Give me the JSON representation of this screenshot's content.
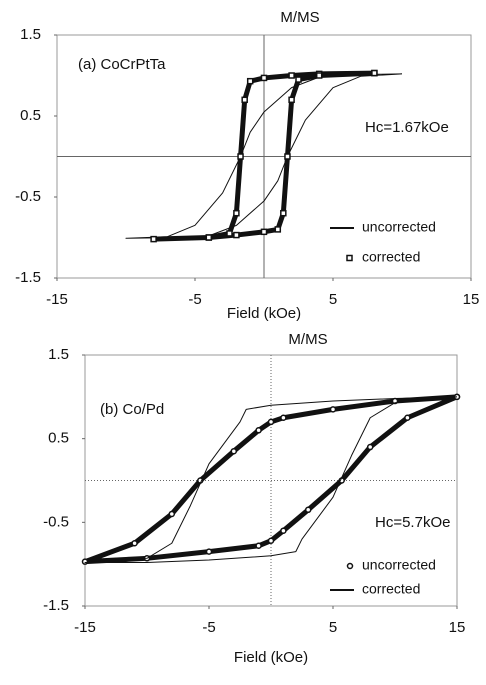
{
  "chart_data": [
    {
      "type": "line",
      "title": "M/MS",
      "x_label": "Field (kOe)",
      "annotations": [
        "(a) CoCrPtTa",
        "Hc=1.67kOe"
      ],
      "xlim": [
        -15,
        15
      ],
      "xticks": [
        -15,
        -5,
        5,
        15
      ],
      "ylim": [
        -1.5,
        1.5
      ],
      "yticks": [
        -1.5,
        -0.5,
        0.5,
        1.5
      ],
      "zero_lines": "solid",
      "series": [
        {
          "name": "uncorrected",
          "color": "#111111",
          "marker": "none",
          "line_width": 1,
          "x": [
            10,
            6,
            4,
            2,
            0,
            -1,
            -1.7,
            -3,
            -5,
            -7,
            -10,
            -6,
            -4,
            -2,
            0,
            1,
            1.7,
            3,
            5,
            7,
            10
          ],
          "values": [
            1.02,
            1.01,
            0.98,
            0.85,
            0.55,
            0.3,
            0,
            -0.45,
            -0.85,
            -0.99,
            -1.01,
            -1,
            -0.98,
            -0.85,
            -0.55,
            -0.3,
            0,
            0.45,
            0.85,
            0.99,
            1.02
          ]
        },
        {
          "name": "corrected",
          "color": "#111111",
          "marker": "square",
          "line_width": 5,
          "x": [
            8,
            4,
            2,
            0,
            -1,
            -1.4,
            -1.7,
            -2,
            -2.5,
            -4,
            -8,
            -4,
            -2,
            0,
            1,
            1.4,
            1.7,
            2,
            2.5,
            4,
            8
          ],
          "values": [
            1.03,
            1.02,
            1.0,
            0.97,
            0.93,
            0.7,
            0,
            -0.7,
            -0.95,
            -1.0,
            -1.02,
            -1.0,
            -0.97,
            -0.93,
            -0.9,
            -0.7,
            0,
            0.7,
            0.95,
            1.0,
            1.03
          ]
        }
      ]
    },
    {
      "type": "line",
      "title": "M/MS",
      "x_label": "Field (kOe)",
      "annotations": [
        "(b) Co/Pd",
        "Hc=5.7kOe"
      ],
      "xlim": [
        -15,
        15
      ],
      "xticks": [
        -15,
        -5,
        5,
        15
      ],
      "ylim": [
        -1.5,
        1.5
      ],
      "yticks": [
        -1.5,
        -0.5,
        0.5,
        1.5
      ],
      "zero_lines": "dotted",
      "series": [
        {
          "name": "uncorrected",
          "color": "#111111",
          "marker": "circle",
          "line_width": 5,
          "x": [
            15,
            10,
            5,
            1,
            0,
            -1,
            -3,
            -5.7,
            -8,
            -11,
            -15,
            -10,
            -5,
            -1,
            0,
            1,
            3,
            5.7,
            8,
            11,
            15
          ],
          "values": [
            1,
            0.95,
            0.85,
            0.75,
            0.7,
            0.6,
            0.35,
            0,
            -0.4,
            -0.75,
            -0.97,
            -0.93,
            -0.85,
            -0.78,
            -0.72,
            -0.6,
            -0.35,
            0,
            0.4,
            0.75,
            1
          ]
        },
        {
          "name": "corrected",
          "color": "#111111",
          "marker": "none",
          "line_width": 1,
          "x": [
            15,
            10,
            5,
            0,
            -2,
            -2.5,
            -3.5,
            -5,
            -6.5,
            -8,
            -10,
            -15,
            -10,
            -5,
            0,
            2,
            2.5,
            3.5,
            5,
            6.5,
            8,
            10,
            15
          ],
          "values": [
            1,
            0.98,
            0.95,
            0.9,
            0.85,
            0.7,
            0.5,
            0.2,
            -0.3,
            -0.75,
            -0.93,
            -0.98,
            -0.98,
            -0.95,
            -0.9,
            -0.85,
            -0.7,
            -0.5,
            -0.2,
            0.3,
            0.75,
            0.93,
            1
          ]
        }
      ]
    }
  ]
}
